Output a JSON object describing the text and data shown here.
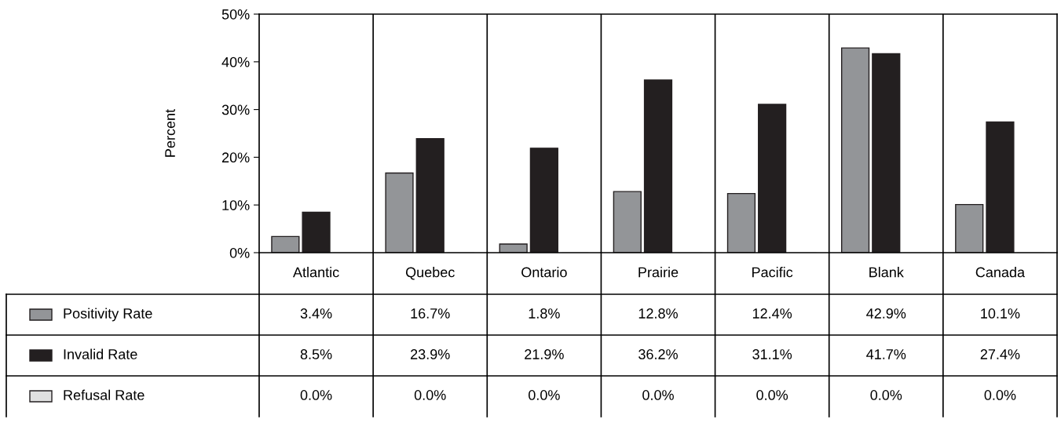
{
  "chart_data": {
    "type": "bar",
    "ylabel": "Percent",
    "categories": [
      "Atlantic",
      "Quebec",
      "Ontario",
      "Prairie",
      "Pacific",
      "Blank",
      "Canada"
    ],
    "series": [
      {
        "name": "Positivity Rate",
        "color": "#939598",
        "values": [
          3.4,
          16.7,
          1.8,
          12.8,
          12.4,
          42.9,
          10.1
        ],
        "value_labels": [
          "3.4%",
          "16.7%",
          "1.8%",
          "12.8%",
          "12.4%",
          "42.9%",
          "10.1%"
        ]
      },
      {
        "name": "Invalid Rate",
        "color": "#231f20",
        "values": [
          8.5,
          23.9,
          21.9,
          36.2,
          31.1,
          41.7,
          27.4
        ],
        "value_labels": [
          "8.5%",
          "23.9%",
          "21.9%",
          "36.2%",
          "31.1%",
          "41.7%",
          "27.4%"
        ]
      },
      {
        "name": "Refusal Rate",
        "color": "#e0e0e0",
        "values": [
          0.0,
          0.0,
          0.0,
          0.0,
          0.0,
          0.0,
          0.0
        ],
        "value_labels": [
          "0.0%",
          "0.0%",
          "0.0%",
          "0.0%",
          "0.0%",
          "0.0%",
          "0.0%"
        ]
      }
    ],
    "ylim": [
      0,
      50
    ],
    "yticks": [
      {
        "value": 0,
        "label": "0%"
      },
      {
        "value": 10,
        "label": "10%"
      },
      {
        "value": 20,
        "label": "20%"
      },
      {
        "value": 30,
        "label": "30%"
      },
      {
        "value": 40,
        "label": "40%"
      },
      {
        "value": 50,
        "label": "50%"
      }
    ],
    "legend": "bottom",
    "grid": false
  }
}
